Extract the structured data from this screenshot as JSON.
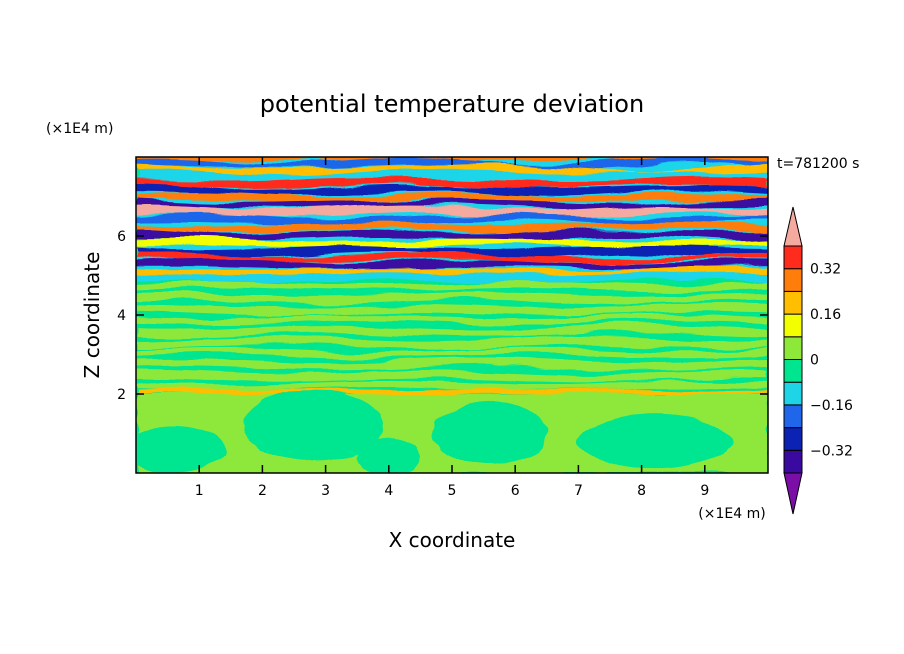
{
  "chart_data": {
    "type": "heatmap",
    "title": "potential temperature deviation",
    "xlabel": "X coordinate",
    "ylabel": "Z coordinate",
    "x_unit": "(×1E4 m)",
    "y_unit": "(×1E4 m)",
    "time_label": "t=781200 s",
    "xlim": [
      0,
      10
    ],
    "ylim": [
      0,
      8
    ],
    "x_ticks": [
      "1",
      "2",
      "3",
      "4",
      "5",
      "6",
      "7",
      "8",
      "9"
    ],
    "y_ticks": [
      "2",
      "4",
      "6"
    ],
    "colorbar": {
      "levels": [
        -0.48,
        -0.4,
        -0.32,
        -0.24,
        -0.16,
        -0.08,
        0,
        0.08,
        0.16,
        0.24,
        0.32,
        0.4,
        0.48
      ],
      "colors": [
        "#7a0ea6",
        "#3a0aa0",
        "#0b22b3",
        "#1f66ea",
        "#1ed5e8",
        "#00e58f",
        "#8ee83a",
        "#f3ff00",
        "#ffbe00",
        "#ff7d0b",
        "#ff2b1c",
        "#f4aa9f"
      ],
      "tick_labels": [
        "0.32",
        "0.16",
        "0",
        "-0.16",
        "-0.32"
      ],
      "tick_values": [
        0.32,
        0.16,
        0,
        -0.16,
        -0.32
      ],
      "extend": "both"
    },
    "bands": [
      {
        "z": 7.95,
        "value": 0.3,
        "amp": 0.05,
        "thick": 0.06,
        "wave": 1.2,
        "phase": 0.3
      },
      {
        "z": 7.82,
        "value": -0.22,
        "amp": 0.06,
        "thick": 0.06,
        "wave": 1.5,
        "phase": 1.1
      },
      {
        "z": 7.68,
        "value": 0.18,
        "amp": 0.07,
        "thick": 0.07,
        "wave": 1.1,
        "phase": 2.0
      },
      {
        "z": 7.52,
        "value": -0.12,
        "amp": 0.06,
        "thick": 0.06,
        "wave": 1.7,
        "phase": 0.7
      },
      {
        "z": 7.35,
        "value": 0.36,
        "amp": 0.05,
        "thick": 0.07,
        "wave": 1.3,
        "phase": 2.6
      },
      {
        "z": 7.18,
        "value": -0.3,
        "amp": 0.06,
        "thick": 0.07,
        "wave": 1.4,
        "phase": 1.7
      },
      {
        "z": 6.98,
        "value": 0.24,
        "amp": 0.05,
        "thick": 0.08,
        "wave": 1.6,
        "phase": 0.1
      },
      {
        "z": 6.8,
        "value": -0.38,
        "amp": 0.05,
        "thick": 0.07,
        "wave": 1.2,
        "phase": 2.2
      },
      {
        "z": 6.62,
        "value": 0.42,
        "amp": 0.06,
        "thick": 0.08,
        "wave": 1.5,
        "phase": 1.3
      },
      {
        "z": 6.42,
        "value": -0.2,
        "amp": 0.05,
        "thick": 0.07,
        "wave": 1.3,
        "phase": 0.5
      },
      {
        "z": 6.22,
        "value": 0.3,
        "amp": 0.05,
        "thick": 0.08,
        "wave": 1.4,
        "phase": 2.9
      },
      {
        "z": 6.02,
        "value": -0.34,
        "amp": 0.05,
        "thick": 0.08,
        "wave": 1.6,
        "phase": 1.9
      },
      {
        "z": 5.82,
        "value": 0.12,
        "amp": 0.05,
        "thick": 0.07,
        "wave": 1.2,
        "phase": 0.9
      },
      {
        "z": 5.62,
        "value": -0.26,
        "amp": 0.05,
        "thick": 0.08,
        "wave": 1.5,
        "phase": 2.4
      },
      {
        "z": 5.45,
        "value": 0.34,
        "amp": 0.04,
        "thick": 0.07,
        "wave": 1.3,
        "phase": 1.5
      },
      {
        "z": 5.28,
        "value": -0.4,
        "amp": 0.04,
        "thick": 0.07,
        "wave": 1.4,
        "phase": 0.2
      },
      {
        "z": 5.1,
        "value": 0.2,
        "amp": 0.04,
        "thick": 0.06,
        "wave": 1.2,
        "phase": 2.7
      },
      {
        "z": 4.92,
        "value": -0.1,
        "amp": 0.04,
        "thick": 0.06,
        "wave": 1.6,
        "phase": 1.0
      },
      {
        "z": 2.05,
        "value": 0.18,
        "amp": 0.02,
        "thick": 0.05,
        "wave": 2.5,
        "phase": 0.6
      }
    ]
  }
}
